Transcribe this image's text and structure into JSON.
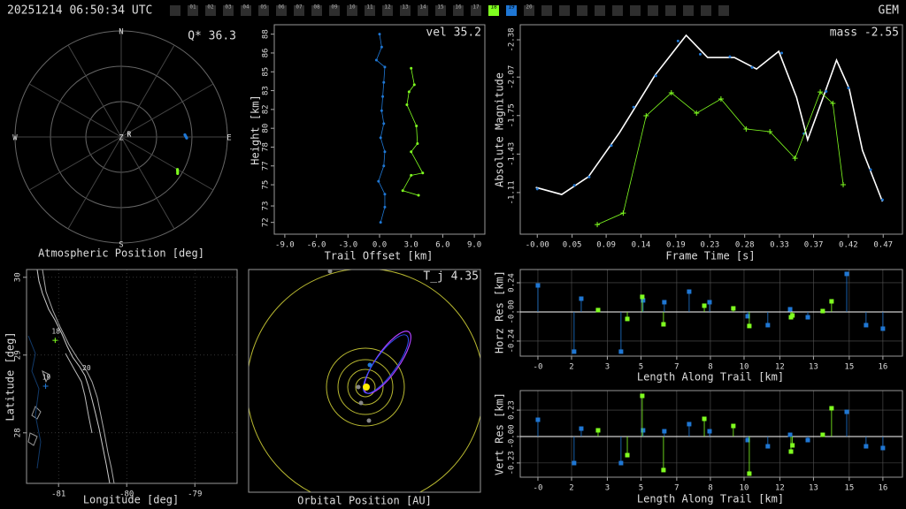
{
  "header": {
    "timestamp": "20251214 06:50:34 UTC",
    "shower": "GEM",
    "stations": [
      {
        "label": "01"
      },
      {
        "label": "02"
      },
      {
        "label": "03"
      },
      {
        "label": "04"
      },
      {
        "label": "05"
      },
      {
        "label": "06"
      },
      {
        "label": "07"
      },
      {
        "label": "08"
      },
      {
        "label": "09"
      },
      {
        "label": "10"
      },
      {
        "label": "11"
      },
      {
        "label": "12"
      },
      {
        "label": "13"
      },
      {
        "label": "14"
      },
      {
        "label": "15"
      },
      {
        "label": "16"
      },
      {
        "label": "17"
      },
      {
        "label": "18",
        "color": "#80ff20"
      },
      {
        "label": "19",
        "color": "#1f77d4"
      },
      {
        "label": "20"
      }
    ]
  },
  "chart_data": [
    {
      "type": "polar",
      "title": "Atmospheric Position [deg]",
      "annotation": "Q* 36.3",
      "labels": {
        "north": "N",
        "east": "E",
        "south": "S",
        "west": "W",
        "zenith": "Z"
      },
      "radiant": {
        "label": "R",
        "azimuth": 72,
        "zenith": 7
      },
      "rlim": [
        0,
        90
      ],
      "rticks": [
        30,
        60,
        90
      ],
      "series": [
        {
          "color": "#1f77d4",
          "azimuth": [
            88,
            89,
            90,
            91
          ],
          "zenith": [
            54,
            54.5,
            55,
            55.5
          ]
        },
        {
          "color": "#80ff20",
          "azimuth": [
            120,
            121,
            122,
            123
          ],
          "zenith": [
            55,
            55.7,
            56.4,
            57
          ]
        }
      ]
    },
    {
      "type": "line",
      "xlabel": "Trail Offset [km]",
      "ylabel": "Height [km]",
      "annotation": "vel 35.2",
      "xlim": [
        -10,
        10
      ],
      "ylim": [
        71,
        88.8
      ],
      "xticks": [
        {
          "value": -9,
          "label": "-9.0"
        },
        {
          "value": -6,
          "label": "-6.0"
        },
        {
          "value": -3,
          "label": "-3.0"
        },
        {
          "value": 0,
          "label": "0.0"
        },
        {
          "value": 3,
          "label": "3.0"
        },
        {
          "value": 6,
          "label": "6.0"
        },
        {
          "value": 9,
          "label": "9.0"
        }
      ],
      "yticks": [
        72,
        {
          "value": 73.4,
          "label": "73"
        },
        {
          "value": 75.2,
          "label": "75"
        },
        {
          "value": 76.8,
          "label": "77"
        },
        {
          "value": 78.4,
          "label": "78"
        },
        80,
        {
          "value": 81.6,
          "label": "82"
        },
        {
          "value": 83.2,
          "label": "83"
        },
        {
          "value": 84.8,
          "label": "85"
        },
        {
          "value": 86.4,
          "label": "86"
        },
        88
      ],
      "series": [
        {
          "color": "#1f77d4",
          "line": true,
          "marker": "dot",
          "x": [
            0.0,
            0.2,
            -0.3,
            0.5,
            0.4,
            0.3,
            0.2,
            0.4,
            0.1,
            0.5,
            0.4,
            -0.1,
            0.5,
            0.5,
            0.1
          ],
          "values": [
            88.0,
            86.9,
            85.8,
            85.2,
            83.9,
            82.7,
            81.5,
            80.4,
            79.2,
            78.0,
            76.8,
            75.5,
            74.4,
            73.3,
            72.0
          ]
        },
        {
          "color": "#80ff20",
          "line": true,
          "marker": "dot",
          "x": [
            3.0,
            3.3,
            2.8,
            2.6,
            3.5,
            3.6,
            3.0,
            4.1,
            3.0,
            2.2,
            3.7
          ],
          "values": [
            85.1,
            83.7,
            83.1,
            82.0,
            80.2,
            78.7,
            78.0,
            76.2,
            76.0,
            74.7,
            74.3
          ]
        }
      ]
    },
    {
      "type": "line",
      "xlabel": "Frame Time [s]",
      "ylabel": "Absolute Magnitude",
      "annotation": "mass -2.55",
      "xlim": [
        -0.023,
        0.493
      ],
      "ylim": [
        -0.764,
        -2.505
      ],
      "xticks": [
        {
          "value": 0,
          "label": "-0.00"
        },
        {
          "value": 0.047,
          "label": "0.05"
        },
        {
          "value": 0.093,
          "label": "0.09"
        },
        {
          "value": 0.14,
          "label": "0.14"
        },
        {
          "value": 0.187,
          "label": "0.19"
        },
        {
          "value": 0.233,
          "label": "0.23"
        },
        {
          "value": 0.28,
          "label": "0.28"
        },
        {
          "value": 0.327,
          "label": "0.33"
        },
        {
          "value": 0.373,
          "label": "0.37"
        },
        {
          "value": 0.42,
          "label": "0.42"
        },
        {
          "value": 0.467,
          "label": "0.47"
        }
      ],
      "yticks": [
        -2.38,
        -2.07,
        -1.75,
        -1.43,
        -1.11
      ],
      "series": [
        {
          "color": "#ffffff",
          "line": true,
          "x": [
            -0.002,
            0.033,
            0.069,
            0.111,
            0.159,
            0.201,
            0.23,
            0.266,
            0.296,
            0.326,
            0.35,
            0.365,
            0.386,
            0.404,
            0.421,
            0.439,
            0.466
          ],
          "values": [
            -1.153,
            -1.094,
            -1.241,
            -1.608,
            -2.086,
            -2.417,
            -2.233,
            -2.233,
            -2.137,
            -2.284,
            -1.902,
            -1.549,
            -1.902,
            -2.211,
            -1.976,
            -1.461,
            -1.035
          ]
        },
        {
          "color": "#1f77d4",
          "marker": "dot",
          "x": [
            0.0,
            0.05,
            0.07,
            0.1,
            0.13,
            0.16,
            0.19,
            0.22,
            0.26,
            0.29,
            0.33,
            0.36,
            0.39,
            0.42,
            0.45,
            0.466
          ],
          "values": [
            -1.14,
            -1.17,
            -1.24,
            -1.5,
            -1.82,
            -2.08,
            -2.37,
            -2.26,
            -2.24,
            -2.15,
            -2.27,
            -1.6,
            -1.95,
            -1.98,
            -1.3,
            -1.05
          ]
        },
        {
          "color": "#80ff20",
          "line": true,
          "marker": "+",
          "x": [
            0.081,
            0.116,
            0.147,
            0.181,
            0.215,
            0.248,
            0.282,
            0.314,
            0.348,
            0.382,
            0.399,
            0.413
          ],
          "values": [
            -0.844,
            -0.939,
            -1.748,
            -1.939,
            -1.77,
            -1.888,
            -1.638,
            -1.616,
            -1.395,
            -1.946,
            -1.851,
            -1.175
          ]
        }
      ]
    },
    {
      "type": "map",
      "xlabel": "Longitude [deg]",
      "ylabel": "Latitude [deg]",
      "grid": true,
      "xlim": [
        -81.47,
        -78.38
      ],
      "ylim": [
        27.35,
        30.1
      ],
      "xticks": [
        -81,
        -80,
        -79
      ],
      "yticks": [
        28,
        29,
        30
      ],
      "stations": [
        {
          "name": "18",
          "lon": -81.05,
          "lat": 29.19,
          "color": "#80ff20"
        },
        {
          "name": "19",
          "lon": -81.19,
          "lat": 28.6,
          "color": "#1f77d4"
        },
        {
          "name": "20",
          "lon": -80.6,
          "lat": 28.72
        }
      ]
    },
    {
      "type": "orbit",
      "title": "Orbital Position [AU]",
      "annotation": "T_j 4.35"
    },
    {
      "type": "stem",
      "xlabel": "Length Along Trail [km]",
      "ylabel": "Horz Res [km]",
      "grid": true,
      "xlim": [
        -0.84,
        17.33
      ],
      "ylim": [
        -0.364,
        0.349
      ],
      "xticks": [
        {
          "value": 0,
          "label": "-0"
        },
        {
          "value": 1.6,
          "label": "2"
        },
        {
          "value": 3.3,
          "label": "3"
        },
        {
          "value": 4.9,
          "label": "5"
        },
        {
          "value": 6.6,
          "label": "7"
        },
        {
          "value": 8.2,
          "label": "8"
        },
        {
          "value": 9.8,
          "label": "10"
        },
        {
          "value": 11.5,
          "label": "12"
        },
        {
          "value": 13.1,
          "label": "13"
        },
        {
          "value": 14.8,
          "label": "15"
        },
        {
          "value": 16.4,
          "label": "16"
        }
      ],
      "yticks": [
        0.24,
        {
          "value": 0,
          "label": "-0.00"
        },
        -0.24
      ],
      "series": [
        {
          "color": "#1f77d4",
          "x": [
            0,
            1.72,
            2.06,
            3.95,
            5.0,
            6.01,
            7.19,
            8.16,
            9.97,
            10.93,
            11.99,
            12.83,
            14.68,
            15.6,
            16.4
          ],
          "values": [
            0.218,
            -0.327,
            0.109,
            -0.327,
            0.095,
            0.08,
            0.167,
            0.08,
            -0.036,
            -0.109,
            0.022,
            -0.044,
            0.313,
            -0.109,
            -0.138
          ]
        },
        {
          "color": "#80ff20",
          "x": [
            2.86,
            4.25,
            4.96,
            5.97,
            7.91,
            9.29,
            10.05,
            12.03,
            12.1,
            13.54,
            13.96
          ],
          "values": [
            0.015,
            -0.058,
            0.124,
            -0.102,
            0.051,
            0.029,
            -0.116,
            -0.044,
            -0.029,
            0.007,
            0.087
          ]
        }
      ]
    },
    {
      "type": "stem",
      "xlabel": "Length Along Trail [km]",
      "ylabel": "Vert Res [km]",
      "grid": true,
      "xlim": [
        -0.84,
        17.33
      ],
      "ylim": [
        -0.354,
        0.4
      ],
      "xticks": [
        {
          "value": 0,
          "label": "-0"
        },
        {
          "value": 1.6,
          "label": "2"
        },
        {
          "value": 3.3,
          "label": "3"
        },
        {
          "value": 4.9,
          "label": "5"
        },
        {
          "value": 6.6,
          "label": "7"
        },
        {
          "value": 8.2,
          "label": "8"
        },
        {
          "value": 9.8,
          "label": "10"
        },
        {
          "value": 11.5,
          "label": "12"
        },
        {
          "value": 13.1,
          "label": "13"
        },
        {
          "value": 14.8,
          "label": "15"
        },
        {
          "value": 16.4,
          "label": "16"
        }
      ],
      "yticks": [
        0.23,
        {
          "value": 0,
          "label": "-0.00"
        },
        -0.23
      ],
      "series": [
        {
          "color": "#1f77d4",
          "x": [
            0,
            1.72,
            2.06,
            3.95,
            5.0,
            6.01,
            7.19,
            8.16,
            9.97,
            10.93,
            11.99,
            12.83,
            14.68,
            15.6,
            16.4
          ],
          "values": [
            0.146,
            -0.231,
            0.069,
            -0.231,
            0.054,
            0.046,
            0.108,
            0.046,
            -0.031,
            -0.085,
            0.015,
            -0.031,
            0.215,
            -0.085,
            -0.1
          ]
        },
        {
          "color": "#80ff20",
          "x": [
            2.86,
            4.25,
            4.96,
            5.97,
            7.91,
            9.29,
            10.05,
            12.03,
            12.1,
            13.54,
            13.96
          ],
          "values": [
            0.054,
            -0.162,
            0.354,
            -0.292,
            0.154,
            0.092,
            -0.323,
            -0.131,
            -0.077,
            0.015,
            0.246
          ]
        }
      ]
    }
  ]
}
